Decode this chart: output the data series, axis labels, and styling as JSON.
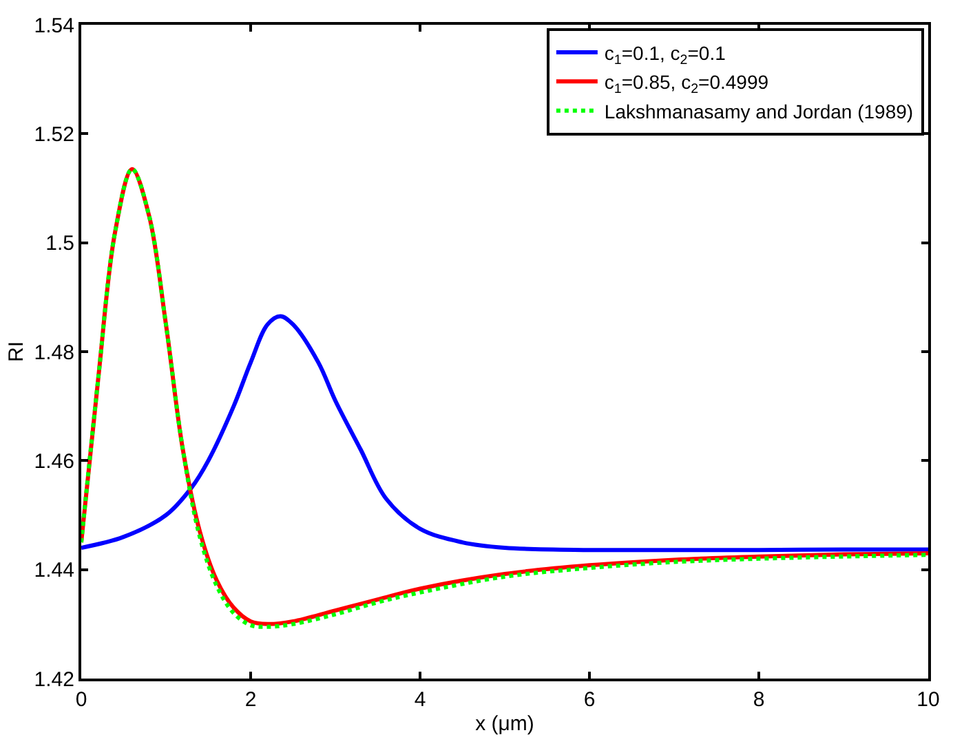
{
  "chart_data": {
    "type": "line",
    "xlabel": "x (μm)",
    "ylabel": "RI",
    "xlim": [
      0,
      10
    ],
    "xticks": [
      0,
      2,
      4,
      6,
      8,
      10
    ],
    "ylim": [
      1.42,
      1.54
    ],
    "yticks": [
      1.42,
      1.44,
      1.46,
      1.48,
      1.5,
      1.52,
      1.54
    ],
    "legend": "top right",
    "series": [
      {
        "name": "c$_{1}$=0.1, c$_{2}$=0.1",
        "color": "#0000ff",
        "line_style": "solid",
        "x": [
          0,
          0.5,
          1.0,
          1.3,
          1.5,
          1.8,
          2.0,
          2.2,
          2.35,
          2.5,
          2.8,
          3.0,
          3.3,
          3.6,
          4.0,
          4.5,
          5,
          6,
          7,
          8,
          9,
          10
        ],
        "values": [
          1.444,
          1.446,
          1.45,
          1.455,
          1.46,
          1.47,
          1.478,
          1.485,
          1.4865,
          1.485,
          1.478,
          1.471,
          1.462,
          1.453,
          1.4475,
          1.445,
          1.444,
          1.4436,
          1.4436,
          1.4436,
          1.4437,
          1.4437
        ]
      },
      {
        "name": "c$_{1}$=0.85, c$_{2}$=0.4999",
        "color": "#ff0000",
        "line_style": "solid",
        "x": [
          0,
          0.2,
          0.4,
          0.6,
          0.8,
          1.0,
          1.2,
          1.4,
          1.6,
          1.8,
          2.0,
          2.2,
          2.5,
          3,
          3.5,
          4,
          5,
          6,
          7,
          8,
          9,
          10
        ],
        "values": [
          1.445,
          1.475,
          1.502,
          1.5135,
          1.505,
          1.485,
          1.462,
          1.447,
          1.438,
          1.433,
          1.4305,
          1.43,
          1.4305,
          1.4325,
          1.4345,
          1.4365,
          1.4392,
          1.4408,
          1.4418,
          1.4424,
          1.4428,
          1.443
        ]
      },
      {
        "name": "Lakshmanasamy and Jordan (1989)",
        "color": "#00ff00",
        "line_style": "dotted",
        "x": [
          0,
          0.2,
          0.4,
          0.6,
          0.8,
          1.0,
          1.2,
          1.4,
          1.6,
          1.8,
          2.0,
          2.2,
          2.5,
          3,
          3.5,
          4,
          5,
          6,
          7,
          8,
          9,
          10
        ],
        "values": [
          1.445,
          1.475,
          1.502,
          1.5135,
          1.505,
          1.485,
          1.462,
          1.446,
          1.437,
          1.432,
          1.4298,
          1.4295,
          1.43,
          1.4318,
          1.434,
          1.4358,
          1.4387,
          1.4403,
          1.4414,
          1.442,
          1.4424,
          1.4427
        ]
      }
    ]
  }
}
